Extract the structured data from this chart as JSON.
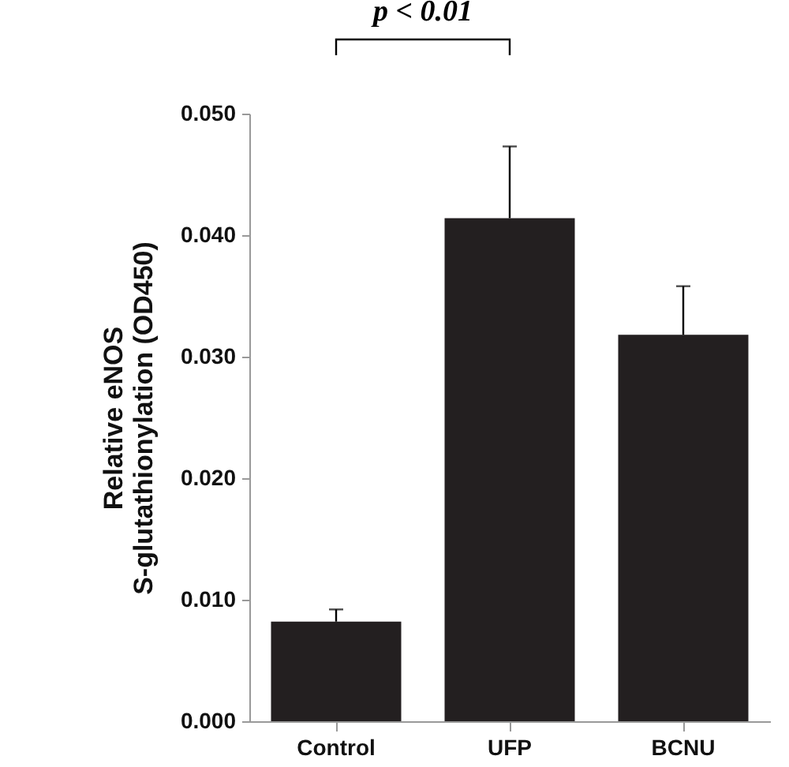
{
  "chart_data": {
    "type": "bar",
    "ylabel": "Relative eNOS\nS-glutathionylation (OD450)",
    "categories": [
      "Control",
      "UFP",
      "BCNU"
    ],
    "values": [
      0.0082,
      0.0414,
      0.0318
    ],
    "errors": [
      [
        0.0082,
        0.0092
      ],
      [
        0.0414,
        0.0473
      ],
      [
        0.0318,
        0.0358
      ]
    ],
    "color": "#231f20",
    "ylim": [
      0,
      0.05
    ],
    "yticks": [
      {
        "value": 0,
        "label": "0.000"
      },
      {
        "value": 0.01,
        "label": "0.010"
      },
      {
        "value": 0.02,
        "label": "0.020"
      },
      {
        "value": 0.03,
        "label": "0.030"
      },
      {
        "value": 0.04,
        "label": "0.040"
      },
      {
        "value": 0.05,
        "label": "0.050"
      }
    ],
    "annotations": [
      "p < 0.01"
    ]
  }
}
